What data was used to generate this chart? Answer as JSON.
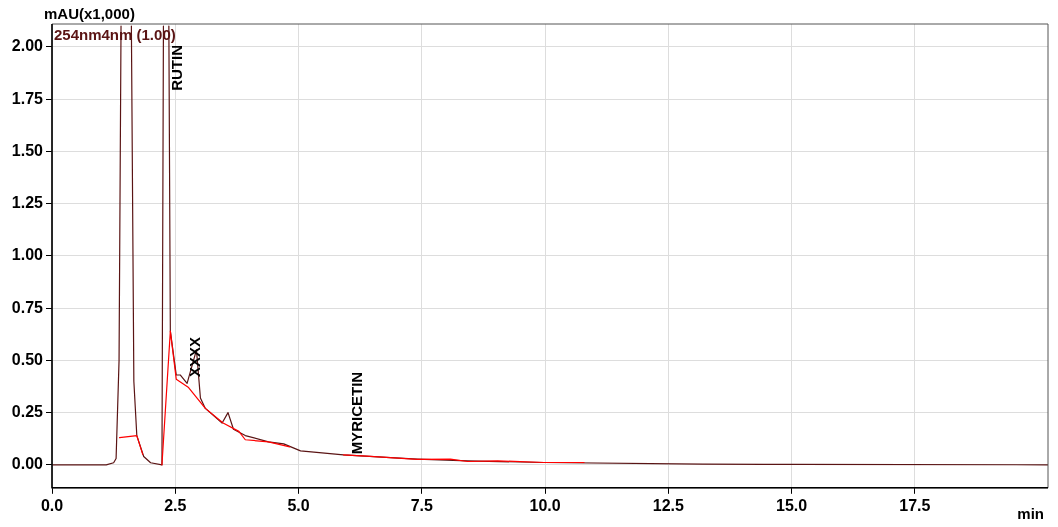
{
  "chart_data": {
    "type": "line",
    "xlabel": "min",
    "ylabel": "mAU(x1,000)",
    "xlim": [
      0,
      20.2
    ],
    "xticks": [
      {
        "value": 0,
        "label": "0.0"
      },
      {
        "value": 2.5,
        "label": "2.5"
      },
      {
        "value": 5,
        "label": "5.0"
      },
      {
        "value": 7.5,
        "label": "7.5"
      },
      {
        "value": 10,
        "label": "10.0"
      },
      {
        "value": 12.5,
        "label": "12.5"
      },
      {
        "value": 15,
        "label": "15.0"
      },
      {
        "value": 17.5,
        "label": "17.5"
      }
    ],
    "ylim": [
      -0.11,
      2.11
    ],
    "yticks": [
      {
        "value": 0,
        "label": "0.00"
      },
      {
        "value": 0.25,
        "label": "0.25"
      },
      {
        "value": 0.5,
        "label": "0.50"
      },
      {
        "value": 0.75,
        "label": "0.75"
      },
      {
        "value": 1,
        "label": "1.00"
      },
      {
        "value": 1.25,
        "label": "1.25"
      },
      {
        "value": 1.5,
        "label": "1.50"
      },
      {
        "value": 1.75,
        "label": "1.75"
      },
      {
        "value": 2,
        "label": "2.00"
      }
    ],
    "grid": true,
    "legend": "top left",
    "marker": "none",
    "line_style": "solid",
    "series": [
      {
        "name": "254nm4nm (1.00)",
        "color": "#5a1414",
        "x": [
          0,
          1.1,
          1.25,
          1.3,
          1.36,
          1.4,
          1.5,
          1.61,
          1.66,
          1.72,
          1.86,
          2.0,
          2.23,
          2.26,
          2.31,
          2.37,
          2.4,
          2.52,
          2.6,
          2.74,
          2.93,
          3.01,
          3.11,
          3.45,
          3.57,
          3.68,
          3.92,
          4.39,
          4.7,
          5.04,
          5.91,
          6.87,
          7.41,
          8.43,
          9.98,
          13.2,
          15,
          20.2
        ],
        "values": [
          0,
          0,
          0.01,
          0.03,
          0.5,
          2.1,
          null,
          2.1,
          0.4,
          0.14,
          0.04,
          0.01,
          0,
          2.1,
          null,
          2.1,
          0.64,
          0.43,
          0.43,
          0.39,
          0.55,
          0.32,
          0.27,
          0.2,
          0.25,
          0.17,
          0.14,
          0.11,
          0.1,
          0.067,
          0.048,
          0.034,
          0.027,
          0.019,
          0.011,
          0.003,
          0.002,
          0
        ]
      },
      {
        "color": "#ff0000",
        "x": [
          1.37,
          1.72,
          1.84,
          2.0,
          2.23,
          2.4,
          2.52,
          2.77,
          3.11,
          3.47,
          3.79,
          3.92,
          4.39,
          4.82,
          5.4,
          5.91,
          6.46,
          7.41,
          8.08,
          8.43,
          9.04,
          9.98,
          10.79
        ],
        "values": [
          0.13,
          0.14,
          0.05,
          null,
          0,
          0.64,
          0.41,
          0.37,
          0.27,
          0.2,
          0.16,
          0.12,
          0.11,
          0.086,
          null,
          0.048,
          0.04,
          0.026,
          0.027,
          0.016,
          0.019,
          0.011,
          0.011
        ]
      }
    ],
    "annotations": [
      {
        "text": "RUTIN",
        "x": 2.38,
        "y": 1.79
      },
      {
        "text": "XXXX",
        "x": 2.74,
        "y": 0.42
      },
      {
        "text": "MYRICETIN",
        "x": 6.04,
        "y": 0.05
      }
    ]
  }
}
